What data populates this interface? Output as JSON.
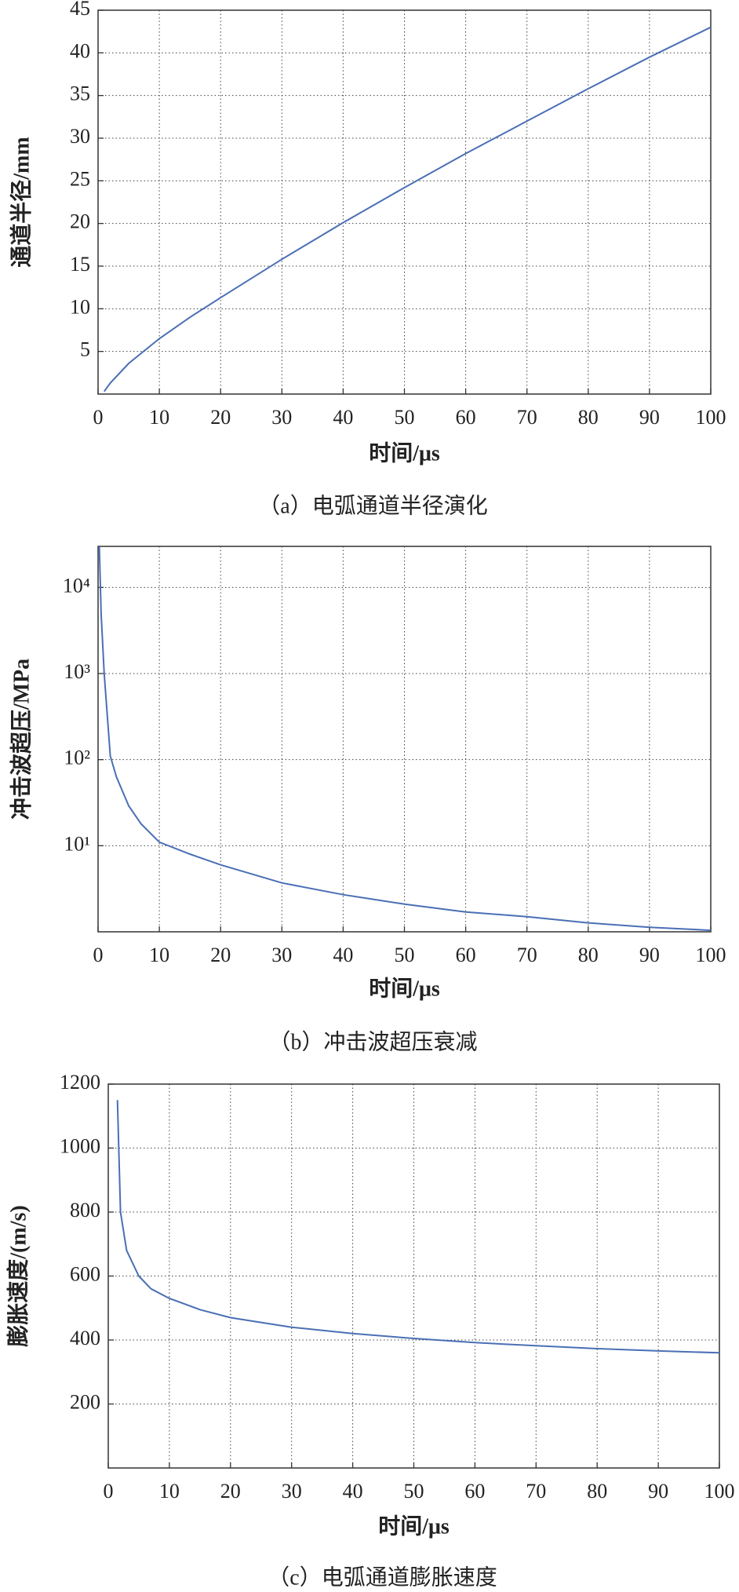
{
  "chart_data": [
    {
      "type": "line",
      "title": "（a）电弧通道半径演化",
      "xlabel": "时间/μs",
      "ylabel": "通道半径/mm",
      "color": "#4a6fb5",
      "grid": true,
      "x": [
        1,
        2,
        5,
        10,
        15,
        20,
        30,
        40,
        50,
        60,
        70,
        80,
        90,
        100
      ],
      "values": [
        0.3,
        1.3,
        3.6,
        6.5,
        9.0,
        11.3,
        15.8,
        20.1,
        24.2,
        28.2,
        32,
        35.8,
        39.5,
        43
      ],
      "xlim": [
        0,
        100
      ],
      "ylim": [
        0,
        45
      ],
      "xticks": [
        0,
        10,
        20,
        30,
        40,
        50,
        60,
        70,
        80,
        90,
        100
      ],
      "yticks": [
        5,
        10,
        15,
        20,
        25,
        30,
        35,
        40,
        45
      ]
    },
    {
      "type": "line",
      "title": "（b）冲击波超压衰减",
      "xlabel": "时间/μs",
      "ylabel": "冲击波超压/MPa",
      "color": "#4a6fb5",
      "grid": true,
      "yscale": "log",
      "x": [
        0.2,
        0.5,
        1,
        2,
        3,
        5,
        7,
        10,
        15,
        20,
        30,
        40,
        50,
        60,
        70,
        80,
        90,
        100
      ],
      "values": [
        30000,
        5000,
        1000,
        110,
        63,
        29,
        18,
        11,
        8,
        6,
        3.7,
        2.7,
        2.1,
        1.7,
        1.5,
        1.27,
        1.13,
        1.04
      ],
      "xlim": [
        0,
        100
      ],
      "ylim": [
        1,
        30000
      ],
      "xticks": [
        0,
        10,
        20,
        30,
        40,
        50,
        60,
        70,
        80,
        90,
        100
      ],
      "yticks": [
        {
          "value": 10,
          "label": "10¹"
        },
        {
          "value": 100,
          "label": "10²"
        },
        {
          "value": 1000,
          "label": "10³"
        },
        {
          "value": 10000,
          "label": "10⁴"
        }
      ]
    },
    {
      "type": "line",
      "title": "（c）电弧通道膨胀速度",
      "xlabel": "时间/μs",
      "ylabel": "膨胀速度/(m/s)",
      "color": "#4a6fb5",
      "grid": true,
      "x": [
        1.5,
        2,
        3,
        5,
        7,
        10,
        15,
        20,
        30,
        40,
        50,
        60,
        70,
        80,
        90,
        100
      ],
      "values": [
        1150,
        800,
        680,
        600,
        560,
        530,
        495,
        470,
        440,
        420,
        405,
        392,
        382,
        373,
        366,
        360
      ],
      "xlim": [
        0,
        100
      ],
      "ylim": [
        0,
        1200
      ],
      "xticks": [
        0,
        10,
        20,
        30,
        40,
        50,
        60,
        70,
        80,
        90,
        100
      ],
      "yticks": [
        200,
        400,
        600,
        800,
        1000,
        1200
      ]
    }
  ]
}
